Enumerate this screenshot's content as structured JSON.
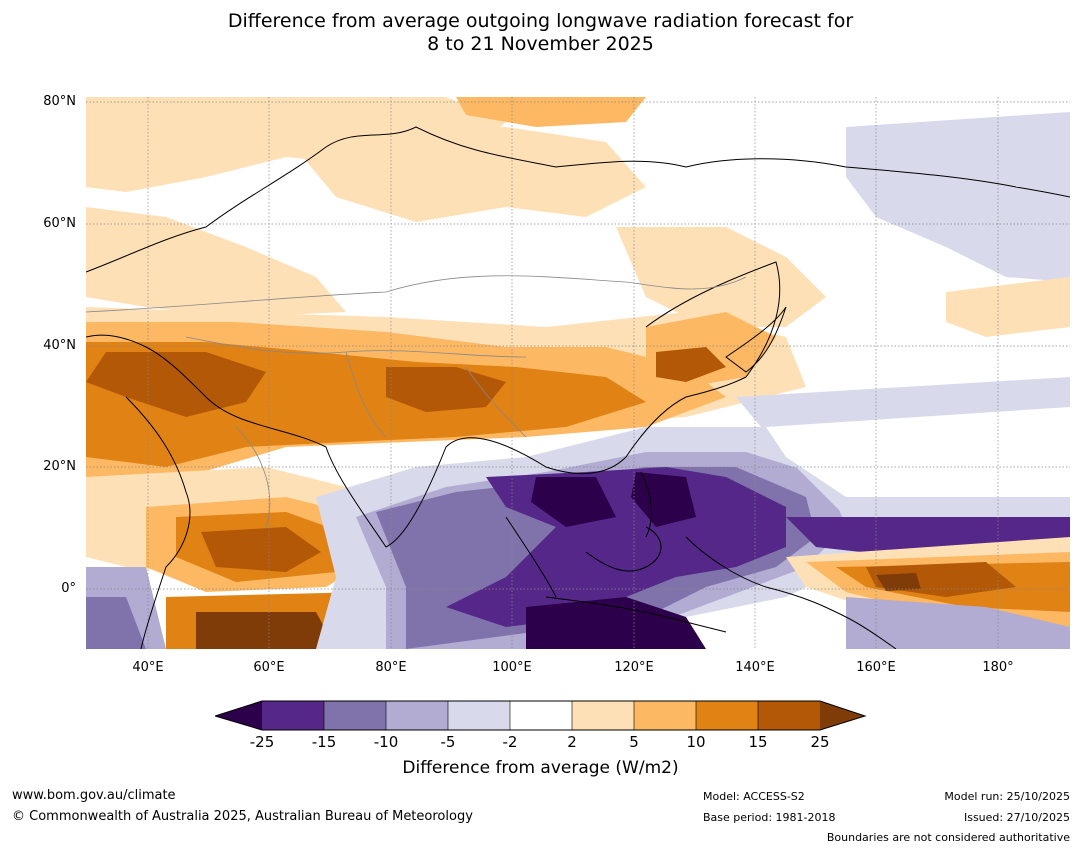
{
  "title": {
    "line1": "Difference from average outgoing longwave radiation forecast for",
    "line2": "8 to 21 November 2025"
  },
  "map": {
    "lat_labels": [
      "80°N",
      "60°N",
      "40°N",
      "20°N",
      "0°"
    ],
    "lon_labels": [
      "40°E",
      "60°E",
      "80°E",
      "100°E",
      "120°E",
      "140°E",
      "160°E",
      "180°"
    ]
  },
  "colorbar": {
    "ticks": [
      "-25",
      "-15",
      "-10",
      "-5",
      "-2",
      "2",
      "5",
      "10",
      "15",
      "25"
    ],
    "colors": {
      "below_min": "#2d004b",
      "c1": "#542788",
      "c2": "#8073ac",
      "c3": "#b2abd2",
      "c4": "#d8daeb",
      "c5": "#ffffff",
      "c6": "#fee0b6",
      "c7": "#fdb863",
      "c8": "#e08214",
      "c9": "#b35806",
      "above_max": "#7f3b08"
    },
    "label": "Difference from average (W/m2)"
  },
  "footer": {
    "website": "www.bom.gov.au/climate",
    "copyright": "© Commonwealth of Australia 2025, Australian Bureau of Meteorology",
    "model": "Model: ACCESS-S2",
    "base_period": "Base period: 1981-2018",
    "model_run": "Model run: 25/10/2025",
    "issued": "Issued: 27/10/2025",
    "disclaimer": "Boundaries are not considered authoritative"
  }
}
